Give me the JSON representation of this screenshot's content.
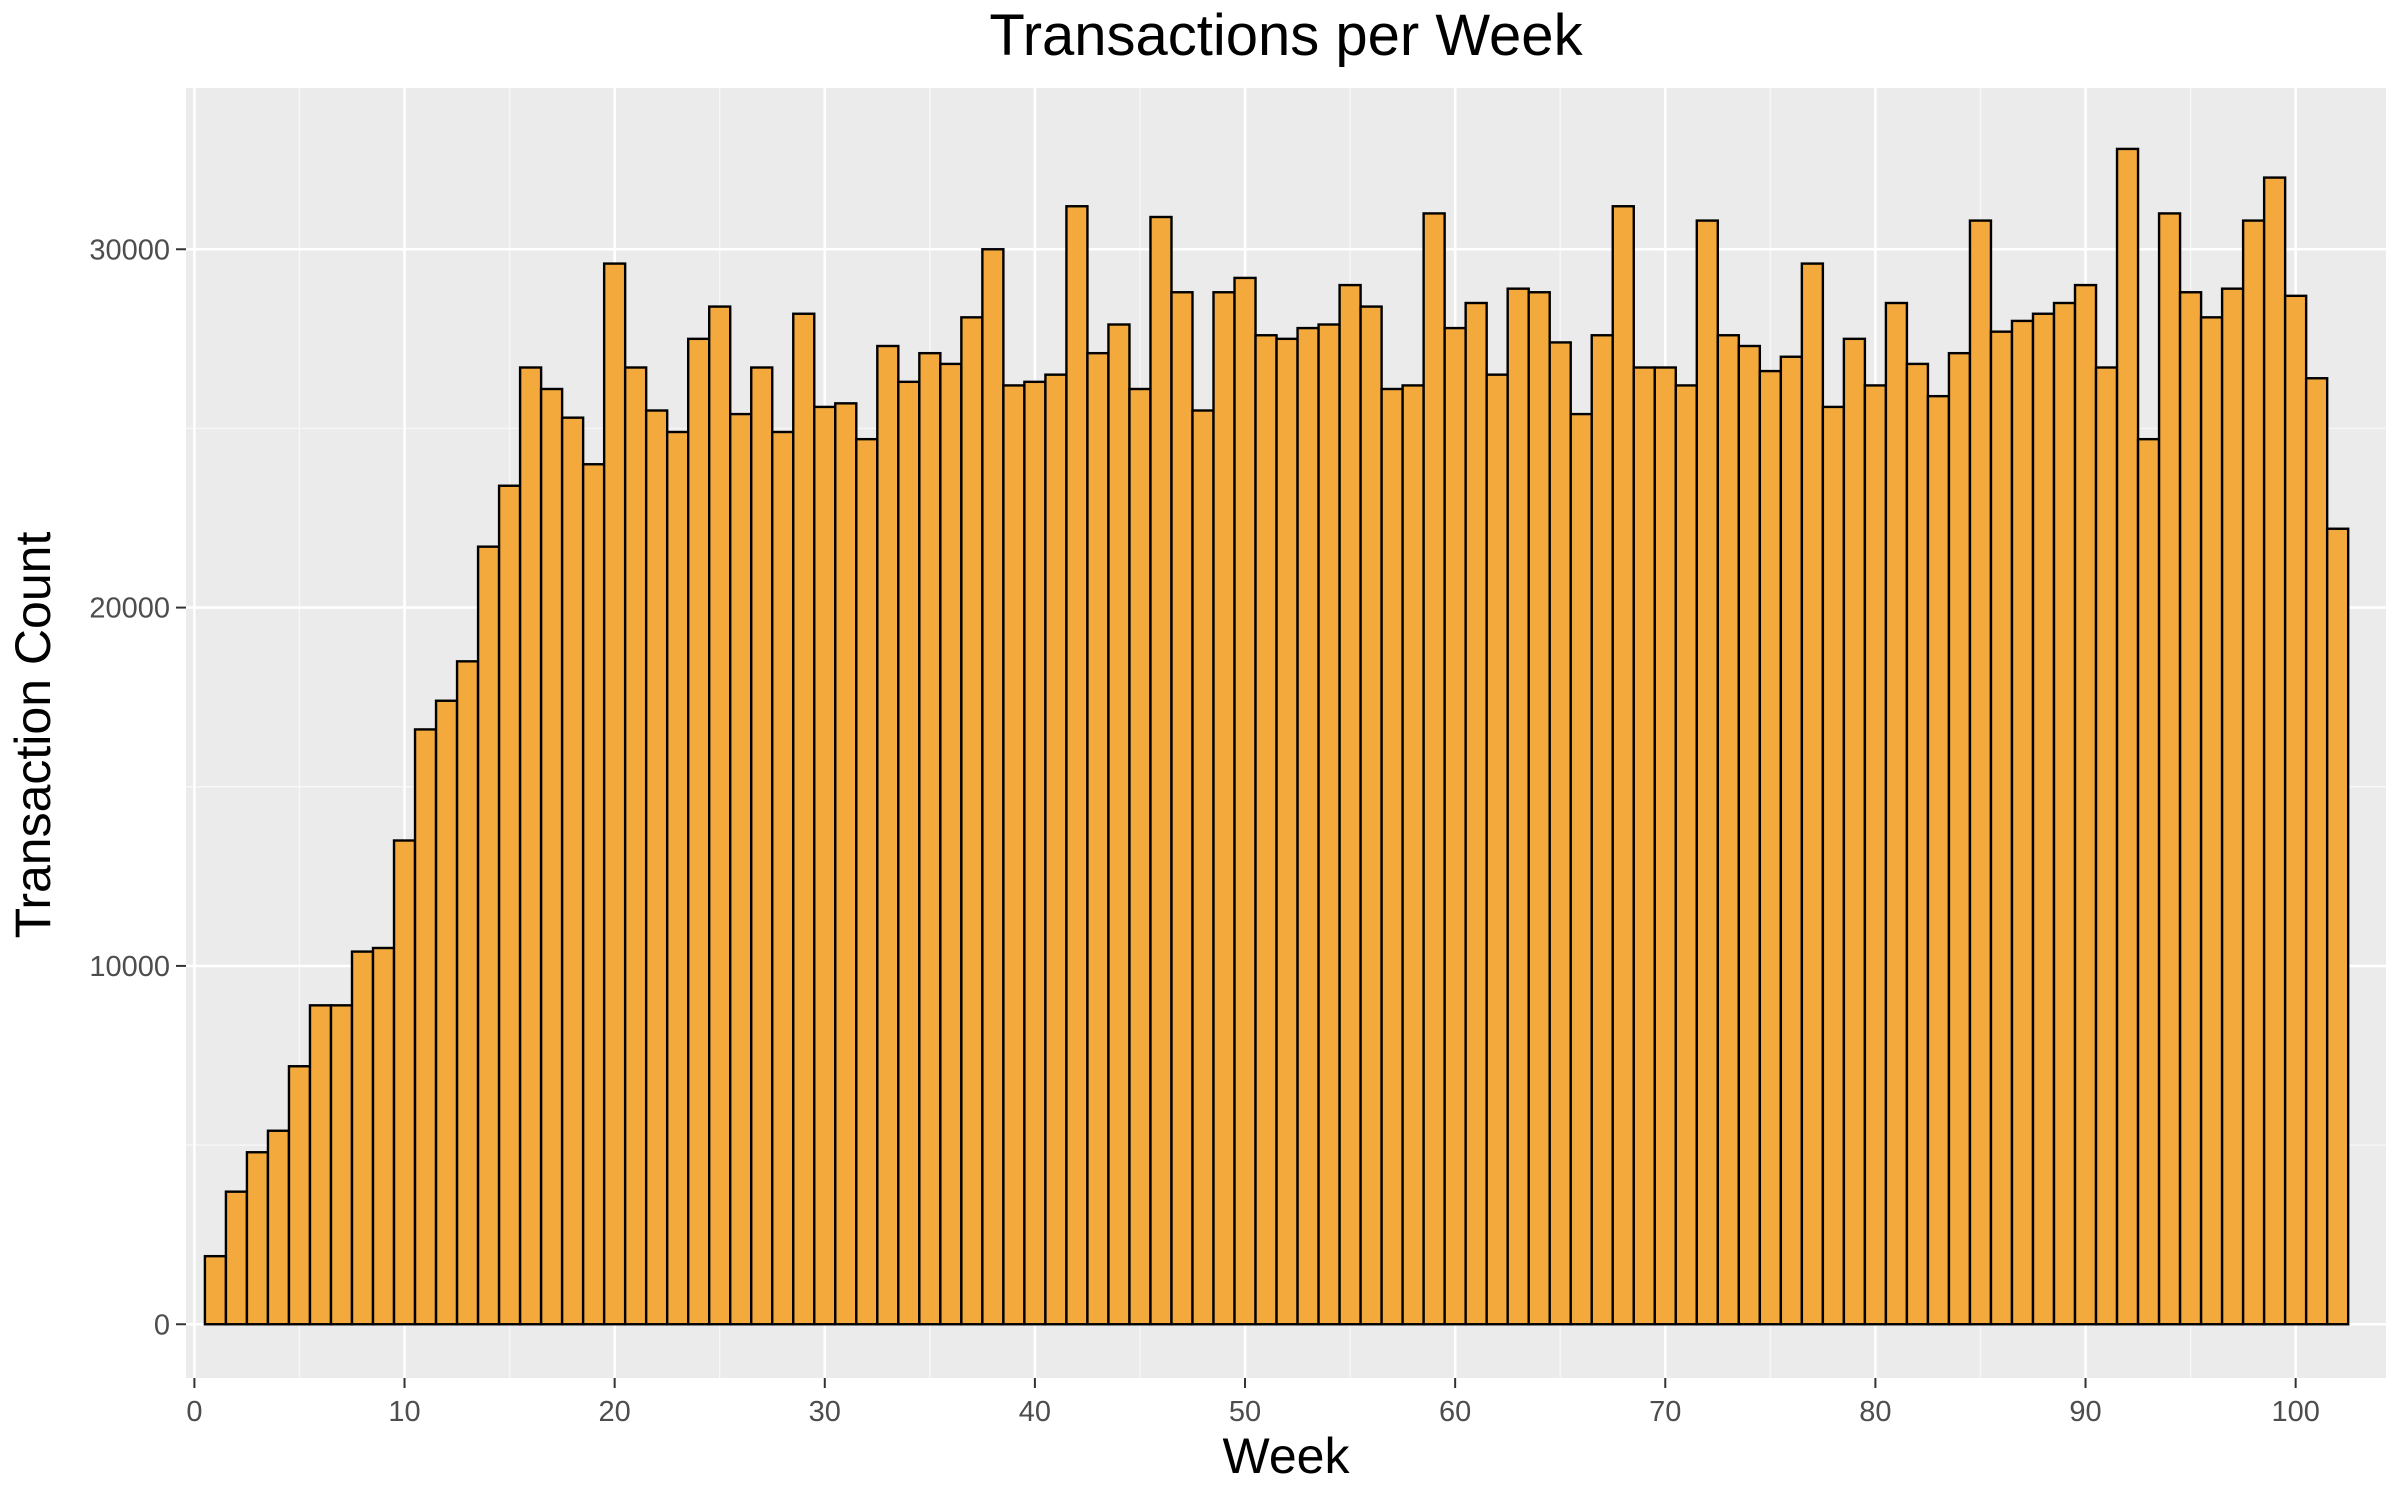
{
  "chart_data": {
    "type": "bar",
    "title": "Transactions per Week",
    "xlabel": "Week",
    "ylabel": "Transaction Count",
    "x": [
      1,
      2,
      3,
      4,
      5,
      6,
      7,
      8,
      9,
      10,
      11,
      12,
      13,
      14,
      15,
      16,
      17,
      18,
      19,
      20,
      21,
      22,
      23,
      24,
      25,
      26,
      27,
      28,
      29,
      30,
      31,
      32,
      33,
      34,
      35,
      36,
      37,
      38,
      39,
      40,
      41,
      42,
      43,
      44,
      45,
      46,
      47,
      48,
      49,
      50,
      51,
      52,
      53,
      54,
      55,
      56,
      57,
      58,
      59,
      60,
      61,
      62,
      63,
      64,
      65,
      66,
      67,
      68,
      69,
      70,
      71,
      72,
      73,
      74,
      75,
      76,
      77,
      78,
      79,
      80,
      81,
      82,
      83,
      84,
      85,
      86,
      87,
      88,
      89,
      90,
      91,
      92,
      93,
      94,
      95,
      96,
      97,
      98,
      99,
      100,
      101,
      102
    ],
    "values": [
      1900,
      3700,
      4800,
      5400,
      7200,
      8900,
      8900,
      10400,
      10500,
      13500,
      16600,
      17400,
      18500,
      21700,
      23400,
      26700,
      26100,
      25300,
      24000,
      29600,
      26700,
      25500,
      24900,
      27500,
      28400,
      25400,
      26700,
      24900,
      28200,
      25600,
      25700,
      24700,
      27300,
      26300,
      27100,
      26800,
      28100,
      30000,
      26200,
      26300,
      26500,
      31200,
      27100,
      27900,
      26100,
      30900,
      28800,
      25500,
      28800,
      29200,
      27600,
      27500,
      27800,
      27900,
      29000,
      28400,
      26100,
      26200,
      31000,
      27800,
      28500,
      26500,
      28900,
      28800,
      27400,
      25400,
      27600,
      31200,
      26700,
      26700,
      26200,
      30800,
      27600,
      27300,
      26600,
      27000,
      29600,
      25600,
      27500,
      26200,
      28500,
      26800,
      25900,
      27100,
      30800,
      27700,
      28000,
      28200,
      28500,
      29000,
      26700,
      32800,
      24700,
      31000,
      28800,
      28100,
      28900,
      30800,
      32000,
      28700,
      26400,
      22200
    ],
    "x_ticks": [
      "0",
      "10",
      "20",
      "30",
      "40",
      "50",
      "60",
      "70",
      "80",
      "90",
      "100"
    ],
    "y_ticks": [
      "0",
      "10000",
      "20000",
      "30000"
    ],
    "xlim": [
      -0.4,
      104.3
    ],
    "ylim": [
      -1500,
      34500
    ],
    "grid": true,
    "legend": "none",
    "colors": {
      "bar_fill": "#F4A93C",
      "bar_stroke": "#000000",
      "panel_bg": "#EBEBEB",
      "grid_major": "#FFFFFF",
      "grid_minor": "#F7F7F7",
      "tick_text": "#4D4D4D"
    }
  }
}
